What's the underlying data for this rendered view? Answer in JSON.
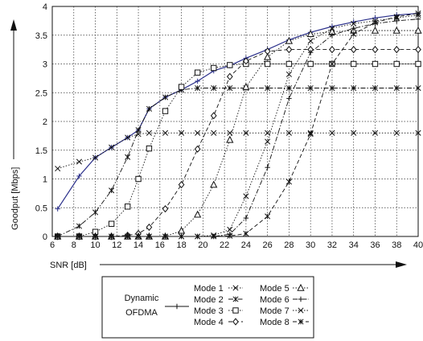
{
  "chart_data": {
    "type": "line",
    "xlabel": "SNR [dB]",
    "ylabel": "Goodput [Mbps]",
    "xlim": [
      6,
      40
    ],
    "ylim": [
      0,
      4
    ],
    "xticks": [
      6,
      8,
      10,
      12,
      14,
      16,
      18,
      20,
      22,
      24,
      26,
      28,
      30,
      32,
      34,
      36,
      38,
      40
    ],
    "yticks": [
      0,
      0.5,
      1,
      1.5,
      2,
      2.5,
      3,
      3.5,
      4
    ],
    "grid": true,
    "legend_position": "bottom",
    "series": [
      {
        "name": "Dynamic OFDMA",
        "marker": "plus",
        "dash": "solid",
        "color": "#2a2f8a",
        "x": [
          6.5,
          8.5,
          10,
          11.5,
          13,
          14,
          15,
          16.5,
          18,
          19.5,
          21,
          22.5,
          24,
          26,
          28,
          30,
          32,
          34,
          36,
          38,
          40
        ],
        "y": [
          0.48,
          1.05,
          1.37,
          1.55,
          1.72,
          1.85,
          2.22,
          2.42,
          2.55,
          2.7,
          2.88,
          2.97,
          3.1,
          3.25,
          3.42,
          3.55,
          3.65,
          3.73,
          3.8,
          3.85,
          3.88
        ]
      },
      {
        "name": "Mode 1",
        "marker": "x",
        "dash": "dotted",
        "color": "#111111",
        "x": [
          6.5,
          8.5,
          10,
          11.5,
          13,
          14,
          15,
          16.5,
          18,
          19.5,
          21,
          22.5,
          24,
          26,
          28,
          30,
          32,
          34,
          36,
          38,
          40
        ],
        "y": [
          1.18,
          1.3,
          1.37,
          1.55,
          1.72,
          1.78,
          1.8,
          1.8,
          1.8,
          1.8,
          1.8,
          1.8,
          1.8,
          1.8,
          1.8,
          1.8,
          1.8,
          1.8,
          1.8,
          1.8,
          1.8
        ]
      },
      {
        "name": "Mode 2",
        "marker": "asterisk",
        "dash": "dashdot",
        "color": "#111111",
        "x": [
          6.5,
          8.5,
          10,
          11.5,
          13,
          14,
          15,
          16.5,
          18,
          19.5,
          21,
          22.5,
          24,
          26,
          28,
          30,
          32,
          34,
          36,
          38,
          40
        ],
        "y": [
          0.0,
          0.18,
          0.42,
          0.8,
          1.38,
          1.85,
          2.22,
          2.42,
          2.55,
          2.58,
          2.58,
          2.58,
          2.58,
          2.58,
          2.58,
          2.58,
          2.58,
          2.58,
          2.58,
          2.58,
          2.58
        ]
      },
      {
        "name": "Mode 3",
        "marker": "square",
        "dash": "dotted",
        "color": "#111111",
        "x": [
          6.5,
          8.5,
          10,
          11.5,
          13,
          14,
          15,
          16.5,
          18,
          19.5,
          21,
          22.5,
          24,
          26,
          28,
          30,
          32,
          34,
          36,
          38,
          40
        ],
        "y": [
          0.0,
          0.0,
          0.08,
          0.22,
          0.52,
          1.0,
          1.53,
          2.18,
          2.6,
          2.85,
          2.93,
          2.98,
          3.0,
          3.0,
          3.0,
          3.0,
          3.0,
          3.0,
          3.0,
          3.0,
          3.0
        ]
      },
      {
        "name": "Mode 4",
        "marker": "diamond",
        "dash": "dashed",
        "color": "#111111",
        "x": [
          6.5,
          8.5,
          10,
          11.5,
          13,
          14,
          15,
          16.5,
          18,
          19.5,
          21,
          22.5,
          24,
          26,
          28,
          30,
          32,
          34,
          36,
          38,
          40
        ],
        "y": [
          0.0,
          0.0,
          0.0,
          0.0,
          0.02,
          0.05,
          0.16,
          0.48,
          0.9,
          1.52,
          2.1,
          2.78,
          3.05,
          3.22,
          3.25,
          3.25,
          3.25,
          3.25,
          3.25,
          3.25,
          3.25
        ]
      },
      {
        "name": "Mode 5",
        "marker": "triangle",
        "dash": "dotted",
        "color": "#111111",
        "x": [
          6.5,
          8.5,
          10,
          11.5,
          13,
          14,
          15,
          16.5,
          18,
          19.5,
          21,
          22.5,
          24,
          26,
          28,
          30,
          32,
          34,
          36,
          38,
          40
        ],
        "y": [
          0.0,
          0.0,
          0.0,
          0.0,
          0.0,
          0.0,
          0.0,
          0.0,
          0.1,
          0.38,
          0.9,
          1.68,
          2.6,
          3.12,
          3.4,
          3.52,
          3.56,
          3.58,
          3.58,
          3.58,
          3.58
        ]
      },
      {
        "name": "Mode 6",
        "marker": "plus",
        "dash": "dashdot",
        "color": "#111111",
        "x": [
          6.5,
          8.5,
          10,
          11.5,
          13,
          14,
          15,
          16.5,
          18,
          19.5,
          21,
          22.5,
          24,
          26,
          28,
          30,
          32,
          34,
          36,
          38,
          40
        ],
        "y": [
          0.0,
          0.0,
          0.0,
          0.0,
          0.0,
          0.0,
          0.0,
          0.0,
          0.0,
          0.0,
          0.0,
          0.04,
          0.32,
          1.2,
          2.4,
          3.2,
          3.5,
          3.62,
          3.7,
          3.75,
          3.78
        ]
      },
      {
        "name": "Mode 7",
        "marker": "x",
        "dash": "dotted",
        "color": "#111111",
        "x": [
          6.5,
          8.5,
          10,
          11.5,
          13,
          14,
          15,
          16.5,
          18,
          19.5,
          21,
          22.5,
          24,
          26,
          28,
          30,
          32,
          34,
          36,
          38,
          40
        ],
        "y": [
          0.0,
          0.0,
          0.0,
          0.0,
          0.0,
          0.0,
          0.0,
          0.0,
          0.0,
          0.0,
          0.02,
          0.12,
          0.7,
          1.65,
          2.82,
          3.4,
          3.62,
          3.7,
          3.75,
          3.8,
          3.85
        ]
      },
      {
        "name": "Mode 8",
        "marker": "asterisk",
        "dash": "dashed",
        "color": "#111111",
        "x": [
          6.5,
          8.5,
          10,
          11.5,
          13,
          14,
          15,
          16.5,
          18,
          19.5,
          21,
          22.5,
          24,
          26,
          28,
          30,
          32,
          34,
          36,
          38,
          40
        ],
        "y": [
          0.0,
          0.0,
          0.0,
          0.0,
          0.0,
          0.0,
          0.0,
          0.0,
          0.0,
          0.0,
          0.0,
          0.01,
          0.05,
          0.35,
          0.95,
          1.78,
          3.0,
          3.52,
          3.72,
          3.82,
          3.88
        ]
      }
    ],
    "legend": {
      "group_label": [
        "Dynamic",
        "OFDMA"
      ],
      "col1": [
        "Mode 1",
        "Mode 2",
        "Mode 3",
        "Mode 4"
      ],
      "col2": [
        "Mode 5",
        "Mode 6",
        "Mode 7",
        "Mode 8"
      ]
    }
  }
}
